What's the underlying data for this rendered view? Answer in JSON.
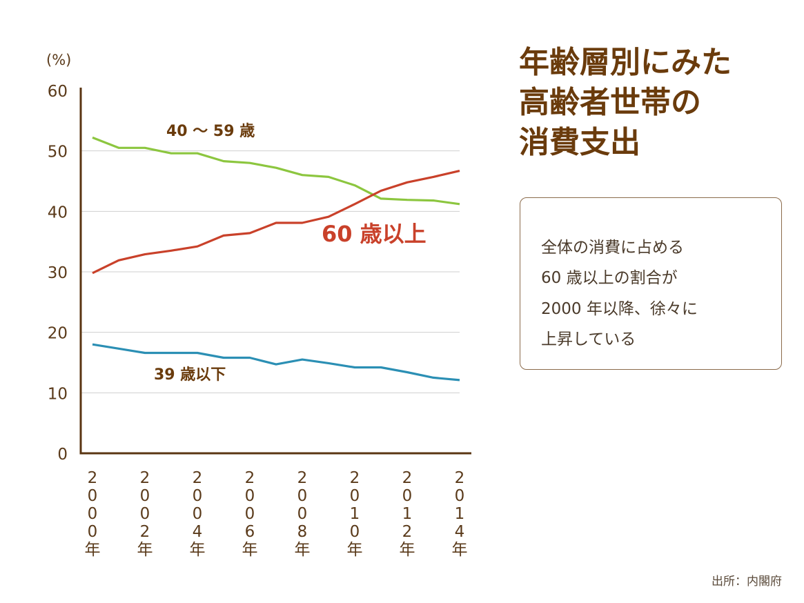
{
  "title": {
    "line1": "年齢層別にみた",
    "line2": "高齢者世帯の",
    "line3": "消費支出"
  },
  "note": {
    "line1": "全体の消費に占める",
    "line2": "60 歳以上の割合が",
    "line3": "2000 年以降、徐々に",
    "line4": "上昇している"
  },
  "source": "出所：内閣府",
  "chart_data": {
    "type": "line",
    "ylabel": "(%)",
    "ylim": [
      0,
      60
    ],
    "yticks": [
      0,
      10,
      20,
      30,
      40,
      50,
      60
    ],
    "grid": true,
    "x": [
      2000,
      2001,
      2002,
      2003,
      2004,
      2005,
      2006,
      2007,
      2008,
      2009,
      2010,
      2011,
      2012,
      2013,
      2014
    ],
    "xtick_labels": [
      {
        "year": 2000,
        "chars": [
          "2",
          "0",
          "0",
          "0",
          "年"
        ]
      },
      {
        "year": 2002,
        "chars": [
          "2",
          "0",
          "0",
          "2",
          "年"
        ]
      },
      {
        "year": 2004,
        "chars": [
          "2",
          "0",
          "0",
          "4",
          "年"
        ]
      },
      {
        "year": 2006,
        "chars": [
          "2",
          "0",
          "0",
          "6",
          "年"
        ]
      },
      {
        "year": 2008,
        "chars": [
          "2",
          "0",
          "0",
          "8",
          "年"
        ]
      },
      {
        "year": 2010,
        "chars": [
          "2",
          "0",
          "1",
          "0",
          "年"
        ]
      },
      {
        "year": 2012,
        "chars": [
          "2",
          "0",
          "1",
          "2",
          "年"
        ]
      },
      {
        "year": 2014,
        "chars": [
          "2",
          "0",
          "1",
          "4",
          "年"
        ]
      }
    ],
    "series": [
      {
        "name": "40 ～ 59 歳",
        "color": "#8cc63f",
        "values": [
          52.2,
          50.5,
          50.5,
          49.6,
          49.6,
          48.3,
          48.0,
          47.2,
          46.0,
          45.7,
          44.3,
          42.1,
          41.9,
          41.8,
          41.2
        ]
      },
      {
        "name": "60 歳以上",
        "color": "#c9412a",
        "values": [
          29.8,
          31.9,
          32.9,
          33.5,
          34.2,
          36.0,
          36.4,
          38.1,
          38.1,
          39.1,
          41.2,
          43.4,
          44.8,
          45.7,
          46.7
        ]
      },
      {
        "name": "39 歳以下",
        "color": "#2b8fb4",
        "values": [
          18.0,
          17.3,
          16.6,
          16.6,
          16.6,
          15.8,
          15.8,
          14.7,
          15.5,
          14.9,
          14.2,
          14.2,
          13.4,
          12.5,
          12.1
        ]
      }
    ],
    "series_label_colors": [
      "#6a3b0c",
      "#c9412a",
      "#6a3b0c"
    ]
  }
}
